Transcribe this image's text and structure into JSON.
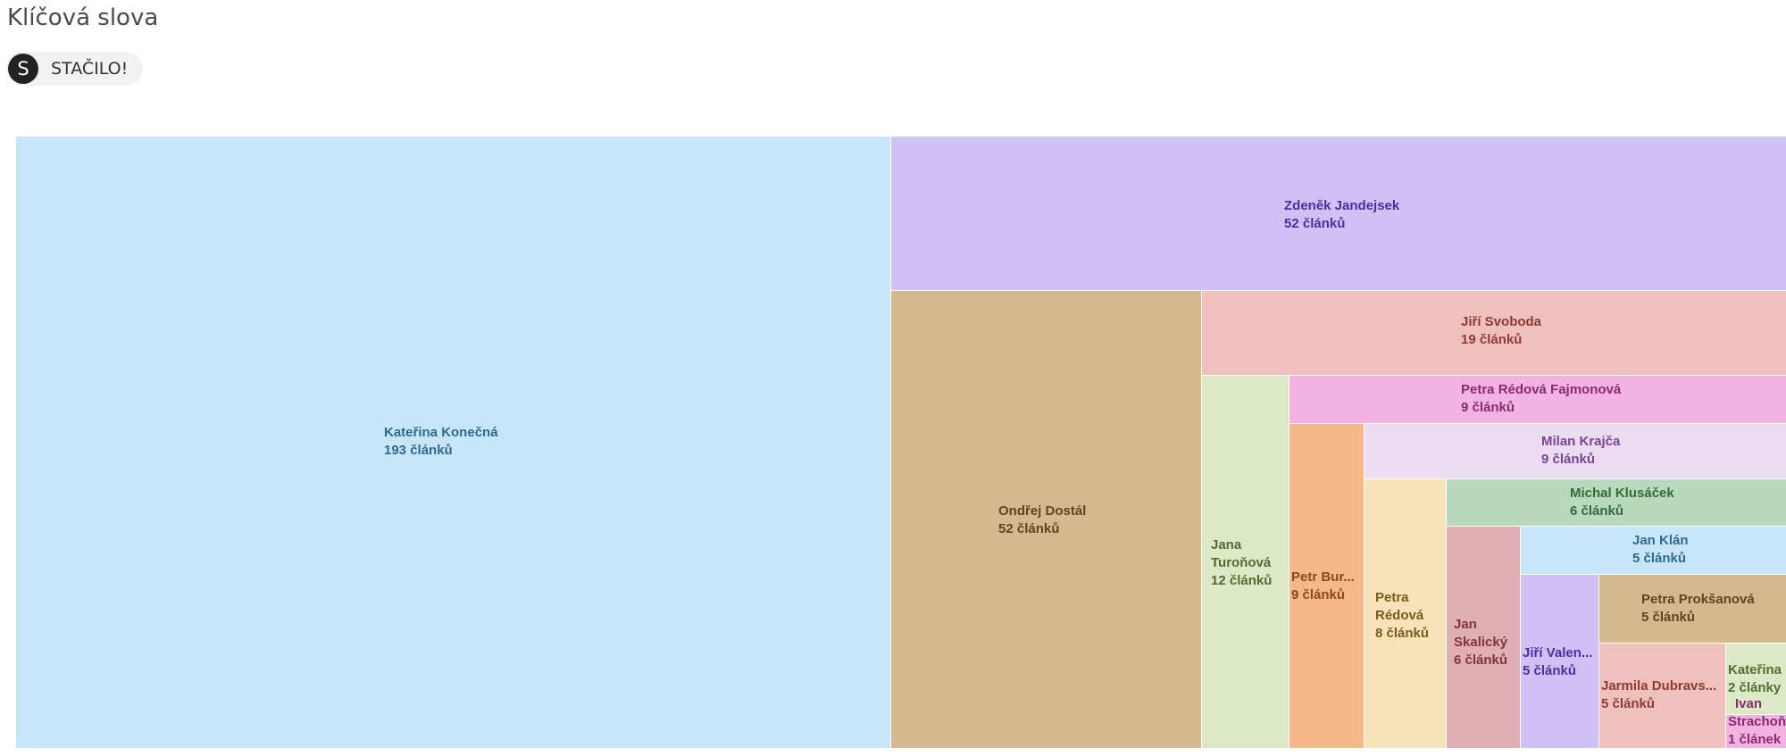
{
  "page": {
    "title": "Klíčová slova"
  },
  "filter_chip": {
    "avatar_letter": "S",
    "label": "STAČILO!"
  },
  "chart_data": {
    "type": "treemap",
    "items": [
      {
        "id": "katerina-konecna",
        "label": "Kateřina Konečná",
        "value_text": "193 článků",
        "value": 193,
        "fill": "#c8e6f9",
        "text_color": "#2e6a8e"
      },
      {
        "id": "zdenek-jandejsek",
        "label": "Zdeněk Jandejsek",
        "value_text": "52 článků",
        "value": 52,
        "fill": "#cfc1f5",
        "text_color": "#4b2fa0"
      },
      {
        "id": "ondrej-dostal",
        "label": "Ondřej Dostál",
        "value_text": "52 článků",
        "value": 52,
        "fill": "#d4b98e",
        "text_color": "#5e4520"
      },
      {
        "id": "jiri-svoboda",
        "label": "Jiří Svoboda",
        "value_text": "19 článků",
        "value": 19,
        "fill": "#f0c0bd",
        "text_color": "#8e3c33"
      },
      {
        "id": "jana-turonova",
        "label": "Jana Turoňová",
        "label_lines": [
          "Jana",
          "Turoňová"
        ],
        "value_text": "12 článků",
        "value": 12,
        "fill": "#dce9c6",
        "text_color": "#556b2f"
      },
      {
        "id": "petra-redova-fajmonova",
        "label": "Petra Rédová Fajmonová",
        "value_text": "9 článků",
        "value": 9,
        "fill": "#f2b3e3",
        "text_color": "#8a2a72"
      },
      {
        "id": "petr-burianek",
        "label": "Petr Bur...",
        "value_text": "9 článků",
        "value": 9,
        "fill": "#f4b88a",
        "text_color": "#8a4a1a"
      },
      {
        "id": "milan-krajca",
        "label": "Milan Krajča",
        "value_text": "9 článků",
        "value": 9,
        "fill": "#ecdcf1",
        "text_color": "#7a4590"
      },
      {
        "id": "petra-redova",
        "label": "Petra Rédová",
        "label_lines": [
          "Petra",
          "Rédová"
        ],
        "value_text": "8 článků",
        "value": 8,
        "fill": "#f6e4b8",
        "text_color": "#7a5a1e"
      },
      {
        "id": "michal-klusacek",
        "label": "Michal Klusáček",
        "value_text": "6 článků",
        "value": 6,
        "fill": "#b8d9bc",
        "text_color": "#356a3a"
      },
      {
        "id": "jan-skalicky",
        "label": "Jan Skalický",
        "label_lines": [
          "Jan",
          "Skalický"
        ],
        "value_text": "6 článků",
        "value": 6,
        "fill": "#e0aeb4",
        "text_color": "#7e3442"
      },
      {
        "id": "jan-klan",
        "label": "Jan Klán",
        "value_text": "5 článků",
        "value": 5,
        "fill": "#c8e6f9",
        "text_color": "#2e6a8e"
      },
      {
        "id": "jiri-valenta",
        "label": "Jiří Valen...",
        "value_text": "5 článků",
        "value": 5,
        "fill": "#cfc1f5",
        "text_color": "#4b2fa0"
      },
      {
        "id": "petra-roksanova",
        "label": "Petra Prokšanová",
        "value_text": "5 článků",
        "value": 5,
        "fill": "#d4b98e",
        "text_color": "#5e4520"
      },
      {
        "id": "jarmila-dubravska",
        "label": "Jarmila Dubravs...",
        "value_text": "5 článků",
        "value": 5,
        "fill": "#f0c0bd",
        "text_color": "#8e3c33"
      },
      {
        "id": "katerina-2",
        "label": "Kateřina ...",
        "value_text": "2 články",
        "value": 2,
        "fill": "#dce9c6",
        "text_color": "#556b2f"
      },
      {
        "id": "ivan-strachon",
        "label": "Ivan Strachoň",
        "label_lines": [
          "Ivan",
          "Strachoň"
        ],
        "value_text": "1 článek",
        "value": 1,
        "fill": "#f2b3e3",
        "text_color": "#8a2a72"
      }
    ]
  }
}
